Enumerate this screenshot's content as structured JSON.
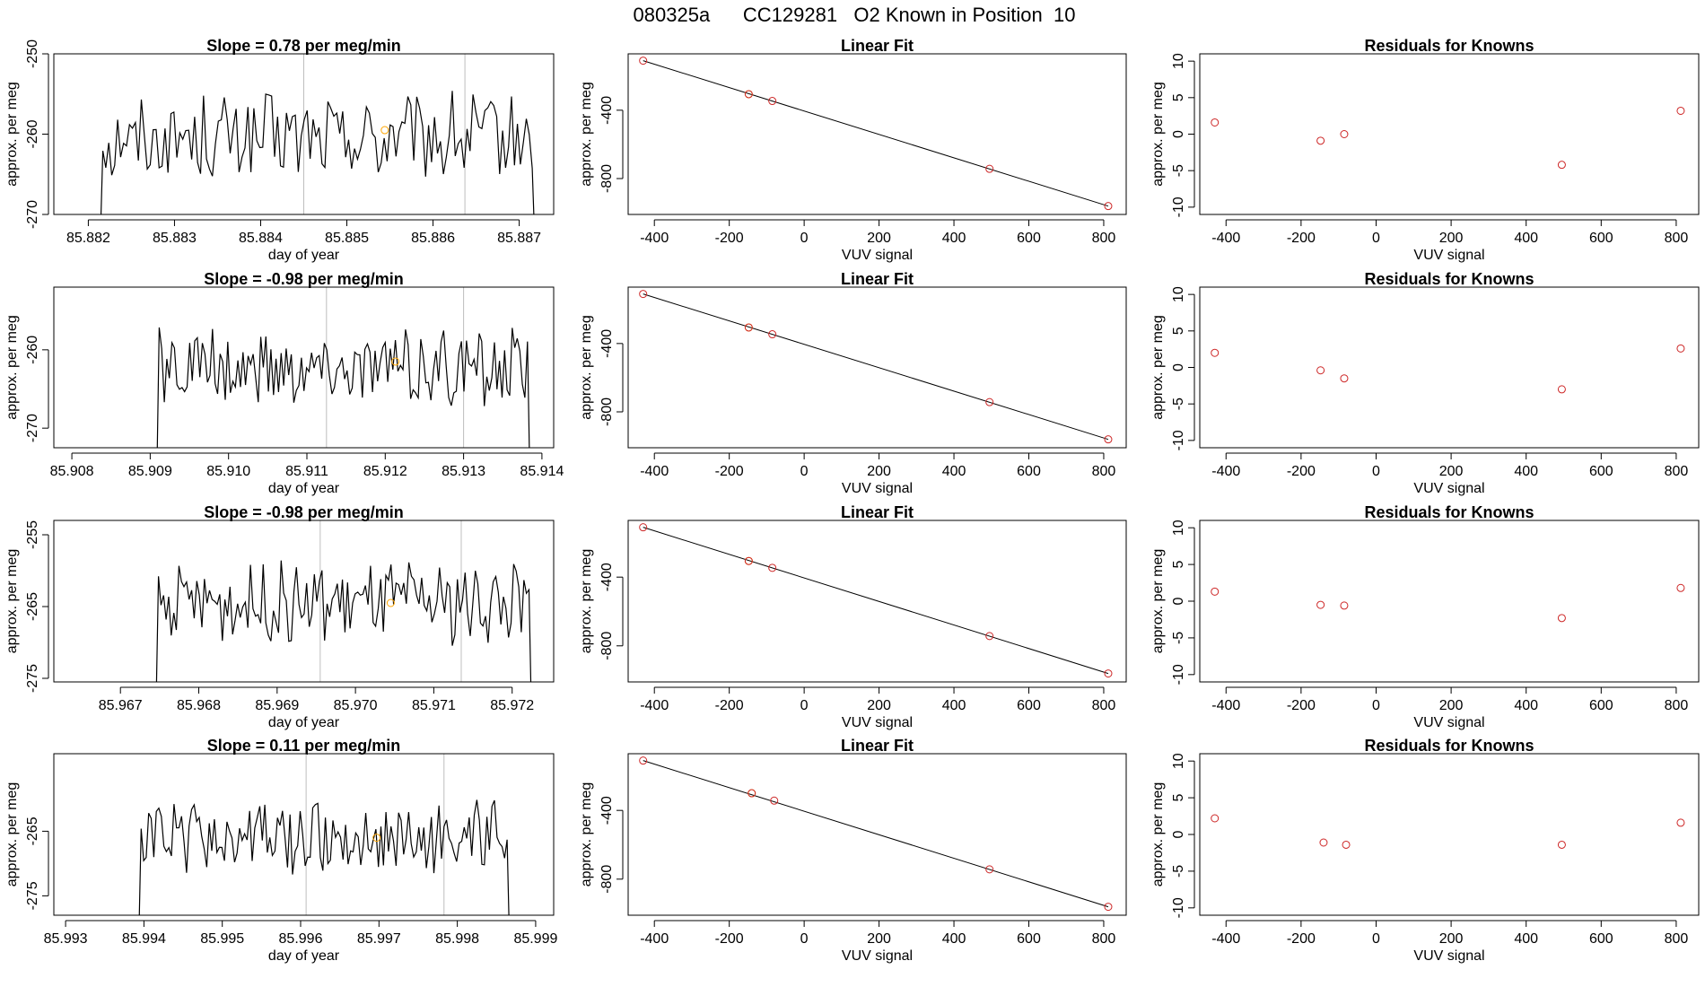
{
  "page_title": "080325a      CC129281   O2 Known in Position  10",
  "colors": {
    "trace": "#000000",
    "gridline": "#bebebe",
    "orange_point": "#ffa500",
    "red_point": "#cd2626",
    "axis": "#000000"
  },
  "chart_data": [
    {
      "type": "line",
      "title": "Slope =  0.78  per meg/min",
      "xlabel": "day of year",
      "ylabel": "approx. per meg",
      "xlim": [
        85.8816,
        85.8874
      ],
      "ylim": [
        -270,
        -250
      ],
      "xticks": [
        85.882,
        85.883,
        85.884,
        85.885,
        85.886,
        85.887
      ],
      "xtick_labels": [
        "85.882",
        "85.883",
        "85.884",
        "85.885",
        "85.886",
        "85.887"
      ],
      "yticks": [
        -270,
        -260,
        -250
      ],
      "ytick_labels": [
        "-270",
        "-260",
        "-250"
      ],
      "vlines": [
        85.8845,
        85.88637
      ],
      "series_start": 85.8821,
      "series_end": 85.88722,
      "series_center": -260.5,
      "series_amplitude": 4.5,
      "marker": {
        "x": 85.88544,
        "y": -259.5,
        "color": "orange"
      }
    },
    {
      "type": "line",
      "title": "Linear Fit",
      "xlabel": "VUV signal",
      "ylabel": "approx. per meg",
      "xlim": [
        -470,
        860
      ],
      "ylim": [
        -1010,
        -70
      ],
      "xticks": [
        -400,
        -200,
        0,
        200,
        400,
        600,
        800
      ],
      "xtick_labels": [
        "-400",
        "-200",
        "0",
        "200",
        "400",
        "600",
        "800"
      ],
      "yticks": [
        -800,
        -400
      ],
      "ytick_labels": [
        "-800",
        "-400"
      ],
      "fit_line": {
        "x": [
          -430,
          812
        ],
        "y": [
          -110,
          -961
        ]
      },
      "points": [
        {
          "x": -430,
          "y": -110,
          "color": "red"
        },
        {
          "x": -148,
          "y": -306,
          "color": "orange"
        },
        {
          "x": -148,
          "y": -306,
          "color": "red"
        },
        {
          "x": -85,
          "y": -346,
          "color": "red"
        },
        {
          "x": 495,
          "y": -743,
          "color": "red"
        },
        {
          "x": 812,
          "y": -961,
          "color": "red"
        }
      ]
    },
    {
      "type": "scatter",
      "title": "Residuals for Knowns",
      "xlabel": "VUV signal",
      "ylabel": "approx. per meg",
      "xlim": [
        -470,
        860
      ],
      "ylim": [
        -11,
        11
      ],
      "xticks": [
        -400,
        -200,
        0,
        200,
        400,
        600,
        800
      ],
      "xtick_labels": [
        "-400",
        "-200",
        "0",
        "200",
        "400",
        "600",
        "800"
      ],
      "yticks": [
        -10,
        -5,
        0,
        5,
        10
      ],
      "ytick_labels": [
        "-10",
        "-5",
        "0",
        "5",
        "10"
      ],
      "points": [
        {
          "x": -430,
          "y": 1.6,
          "color": "red"
        },
        {
          "x": -148,
          "y": -0.9,
          "color": "red"
        },
        {
          "x": -85,
          "y": 0.0,
          "color": "red"
        },
        {
          "x": 495,
          "y": -4.2,
          "color": "red"
        },
        {
          "x": 812,
          "y": 3.2,
          "color": "red"
        }
      ]
    },
    {
      "type": "line",
      "title": "Slope =  -0.98  per meg/min",
      "xlabel": "day of year",
      "ylabel": "approx. per meg",
      "xlim": [
        85.90777,
        85.91415
      ],
      "ylim": [
        -272.5,
        -252
      ],
      "xticks": [
        85.908,
        85.909,
        85.91,
        85.911,
        85.912,
        85.913,
        85.914
      ],
      "xtick_labels": [
        "85.908",
        "85.909",
        "85.910",
        "85.911",
        "85.912",
        "85.913",
        "85.914"
      ],
      "yticks": [
        -270,
        -260
      ],
      "ytick_labels": [
        "-270",
        "-260"
      ],
      "vlines": [
        85.91125,
        85.913
      ],
      "series_start": 85.90905,
      "series_end": 85.91388,
      "series_center": -262.5,
      "series_amplitude": 4.0,
      "marker": {
        "x": 85.91213,
        "y": -261.5,
        "color": "orange"
      }
    },
    {
      "type": "line",
      "title": "Linear Fit",
      "xlabel": "VUV signal",
      "ylabel": "approx. per meg",
      "xlim": [
        -470,
        860
      ],
      "ylim": [
        -1010,
        -70
      ],
      "xticks": [
        -400,
        -200,
        0,
        200,
        400,
        600,
        800
      ],
      "xtick_labels": [
        "-400",
        "-200",
        "0",
        "200",
        "400",
        "600",
        "800"
      ],
      "yticks": [
        -800,
        -400
      ],
      "ytick_labels": [
        "-800",
        "-400"
      ],
      "fit_line": {
        "x": [
          -430,
          812
        ],
        "y": [
          -110,
          -961
        ]
      },
      "points": [
        {
          "x": -430,
          "y": -110,
          "color": "red"
        },
        {
          "x": -148,
          "y": -306,
          "color": "orange"
        },
        {
          "x": -148,
          "y": -306,
          "color": "red"
        },
        {
          "x": -85,
          "y": -346,
          "color": "red"
        },
        {
          "x": 495,
          "y": -743,
          "color": "red"
        },
        {
          "x": 812,
          "y": -961,
          "color": "red"
        }
      ]
    },
    {
      "type": "scatter",
      "title": "Residuals for Knowns",
      "xlabel": "VUV signal",
      "ylabel": "approx. per meg",
      "xlim": [
        -470,
        860
      ],
      "ylim": [
        -11,
        11
      ],
      "xticks": [
        -400,
        -200,
        0,
        200,
        400,
        600,
        800
      ],
      "xtick_labels": [
        "-400",
        "-200",
        "0",
        "200",
        "400",
        "600",
        "800"
      ],
      "yticks": [
        -10,
        -5,
        0,
        5,
        10
      ],
      "ytick_labels": [
        "-10",
        "-5",
        "0",
        "5",
        "10"
      ],
      "points": [
        {
          "x": -430,
          "y": 2.0,
          "color": "red"
        },
        {
          "x": -148,
          "y": -0.4,
          "color": "red"
        },
        {
          "x": -85,
          "y": -1.5,
          "color": "red"
        },
        {
          "x": 495,
          "y": -3.0,
          "color": "red"
        },
        {
          "x": 812,
          "y": 2.6,
          "color": "red"
        }
      ]
    },
    {
      "type": "line",
      "title": "Slope =  -0.98  per meg/min",
      "xlabel": "day of year",
      "ylabel": "approx. per meg",
      "xlim": [
        85.96615,
        85.97253
      ],
      "ylim": [
        -275.5,
        -253
      ],
      "xticks": [
        85.967,
        85.968,
        85.969,
        85.97,
        85.971,
        85.972
      ],
      "xtick_labels": [
        "85.967",
        "85.968",
        "85.969",
        "85.970",
        "85.971",
        "85.972"
      ],
      "yticks": [
        -275,
        -265,
        -255
      ],
      "ytick_labels": [
        "-275",
        "-265",
        "-255"
      ],
      "vlines": [
        85.96955,
        85.97135
      ],
      "series_start": 85.96742,
      "series_end": 85.97228,
      "series_center": -264.5,
      "series_amplitude": 4.5,
      "marker": {
        "x": 85.97045,
        "y": -264.5,
        "color": "orange"
      }
    },
    {
      "type": "line",
      "title": "Linear Fit",
      "xlabel": "VUV signal",
      "ylabel": "approx. per meg",
      "xlim": [
        -470,
        860
      ],
      "ylim": [
        -1010,
        -70
      ],
      "xticks": [
        -400,
        -200,
        0,
        200,
        400,
        600,
        800
      ],
      "xtick_labels": [
        "-400",
        "-200",
        "0",
        "200",
        "400",
        "600",
        "800"
      ],
      "yticks": [
        -800,
        -400
      ],
      "ytick_labels": [
        "-800",
        "-400"
      ],
      "fit_line": {
        "x": [
          -430,
          812
        ],
        "y": [
          -110,
          -961
        ]
      },
      "points": [
        {
          "x": -430,
          "y": -110,
          "color": "red"
        },
        {
          "x": -148,
          "y": -306,
          "color": "orange"
        },
        {
          "x": -148,
          "y": -306,
          "color": "red"
        },
        {
          "x": -85,
          "y": -346,
          "color": "red"
        },
        {
          "x": 495,
          "y": -743,
          "color": "red"
        },
        {
          "x": 812,
          "y": -961,
          "color": "red"
        }
      ]
    },
    {
      "type": "scatter",
      "title": "Residuals for Knowns",
      "xlabel": "VUV signal",
      "ylabel": "approx. per meg",
      "xlim": [
        -470,
        860
      ],
      "ylim": [
        -11,
        11
      ],
      "xticks": [
        -400,
        -200,
        0,
        200,
        400,
        600,
        800
      ],
      "xtick_labels": [
        "-400",
        "-200",
        "0",
        "200",
        "400",
        "600",
        "800"
      ],
      "yticks": [
        -10,
        -5,
        0,
        5,
        10
      ],
      "ytick_labels": [
        "-10",
        "-5",
        "0",
        "5",
        "10"
      ],
      "points": [
        {
          "x": -430,
          "y": 1.3,
          "color": "red"
        },
        {
          "x": -148,
          "y": -0.5,
          "color": "red"
        },
        {
          "x": -85,
          "y": -0.6,
          "color": "red"
        },
        {
          "x": 495,
          "y": -2.3,
          "color": "red"
        },
        {
          "x": 812,
          "y": 1.8,
          "color": "red"
        }
      ]
    },
    {
      "type": "line",
      "title": "Slope =  0.11  per meg/min",
      "xlabel": "day of year",
      "ylabel": "approx. per meg",
      "xlim": [
        85.99285,
        85.99923
      ],
      "ylim": [
        -278,
        -253
      ],
      "xticks": [
        85.993,
        85.994,
        85.995,
        85.996,
        85.997,
        85.998,
        85.999
      ],
      "xtick_labels": [
        "85.993",
        "85.994",
        "85.995",
        "85.996",
        "85.997",
        "85.998",
        "85.999"
      ],
      "yticks": [
        -275,
        -265
      ],
      "ytick_labels": [
        "-275",
        "-265"
      ],
      "vlines": [
        85.99607,
        85.99783
      ],
      "series_start": 85.9939,
      "series_end": 85.9987,
      "series_center": -266.0,
      "series_amplitude": 4.5,
      "marker": {
        "x": 85.99697,
        "y": -266.0,
        "color": "orange"
      }
    },
    {
      "type": "line",
      "title": "Linear Fit",
      "xlabel": "VUV signal",
      "ylabel": "approx. per meg",
      "xlim": [
        -470,
        860
      ],
      "ylim": [
        -1010,
        -70
      ],
      "xticks": [
        -400,
        -200,
        0,
        200,
        400,
        600,
        800
      ],
      "xtick_labels": [
        "-400",
        "-200",
        "0",
        "200",
        "400",
        "600",
        "800"
      ],
      "yticks": [
        -800,
        -400
      ],
      "ytick_labels": [
        "-800",
        "-400"
      ],
      "fit_line": {
        "x": [
          -430,
          812
        ],
        "y": [
          -110,
          -961
        ]
      },
      "points": [
        {
          "x": -430,
          "y": -110,
          "color": "red"
        },
        {
          "x": -140,
          "y": -300,
          "color": "orange"
        },
        {
          "x": -140,
          "y": -300,
          "color": "red"
        },
        {
          "x": -80,
          "y": -343,
          "color": "red"
        },
        {
          "x": 495,
          "y": -743,
          "color": "red"
        },
        {
          "x": 812,
          "y": -961,
          "color": "red"
        }
      ]
    },
    {
      "type": "scatter",
      "title": "Residuals for Knowns",
      "xlabel": "VUV signal",
      "ylabel": "approx. per meg",
      "xlim": [
        -470,
        860
      ],
      "ylim": [
        -11,
        11
      ],
      "xticks": [
        -400,
        -200,
        0,
        200,
        400,
        600,
        800
      ],
      "xtick_labels": [
        "-400",
        "-200",
        "0",
        "200",
        "400",
        "600",
        "800"
      ],
      "yticks": [
        -10,
        -5,
        0,
        5,
        10
      ],
      "ytick_labels": [
        "-10",
        "-5",
        "0",
        "5",
        "10"
      ],
      "points": [
        {
          "x": -430,
          "y": 2.2,
          "color": "red"
        },
        {
          "x": -140,
          "y": -1.1,
          "color": "red"
        },
        {
          "x": -80,
          "y": -1.4,
          "color": "red"
        },
        {
          "x": 495,
          "y": -1.4,
          "color": "red"
        },
        {
          "x": 812,
          "y": 1.6,
          "color": "red"
        }
      ]
    }
  ]
}
